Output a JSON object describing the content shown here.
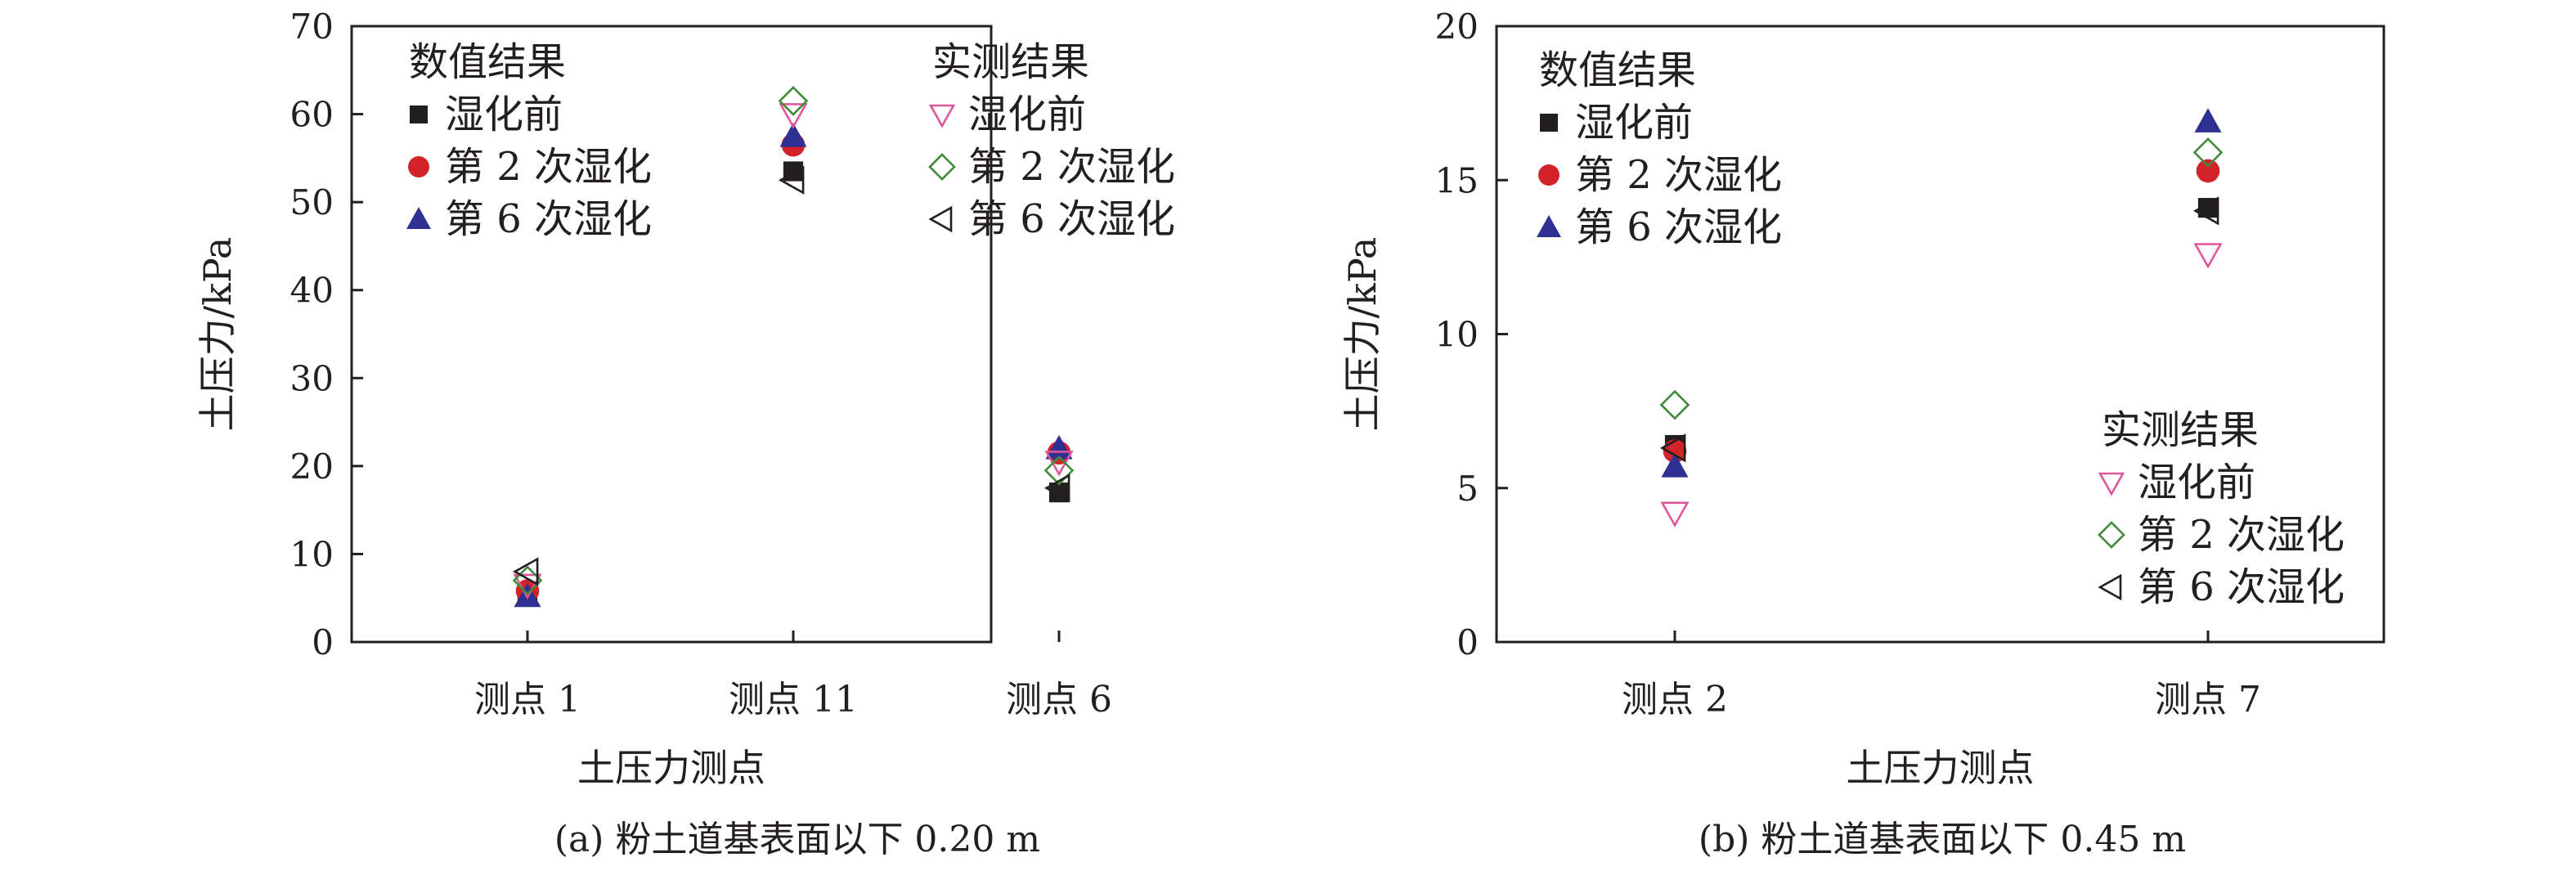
{
  "colors": {
    "axis": "#231f20",
    "num_pre": "#231f20",
    "num_2": "#d2232a",
    "num_6": "#2e3192",
    "mea_pre": "#e0569a",
    "mea_2": "#3f8b3a",
    "mea_6": "#231f20"
  },
  "chart_data": [
    {
      "type": "scatter",
      "caption": "(a) 粉土道基表面以下 0.20 m",
      "xlabel": "土压力测点",
      "ylabel": "土压力/kPa",
      "categories": [
        "测点 1",
        "测点 11",
        "测点 6"
      ],
      "ylim": [
        0,
        70
      ],
      "yticks": [
        0,
        10,
        20,
        30,
        40,
        50,
        60,
        70
      ],
      "grid": false,
      "legend_groups": [
        {
          "title": "数值结果",
          "position": "top-left",
          "series": [
            0,
            1,
            2
          ]
        },
        {
          "title": "实测结果",
          "position": "top-right",
          "series": [
            3,
            4,
            5
          ]
        }
      ],
      "series": [
        {
          "name": "湿化前",
          "group": "数值结果",
          "marker": "square",
          "color_key": "num_pre",
          "values": [
            5.5,
            53.5,
            17
          ]
        },
        {
          "name": "第 2 次湿化",
          "group": "数值结果",
          "marker": "circle",
          "color_key": "num_2",
          "values": [
            5.8,
            56.5,
            21.5
          ]
        },
        {
          "name": "第 6 次湿化",
          "group": "数值结果",
          "marker": "triangle-up",
          "color_key": "num_6",
          "values": [
            5.2,
            57.5,
            22
          ]
        },
        {
          "name": "湿化前",
          "group": "实测结果",
          "marker": "triangle-down-open",
          "color_key": "mea_pre",
          "values": [
            6.5,
            60,
            20.5
          ]
        },
        {
          "name": "第 2 次湿化",
          "group": "实测结果",
          "marker": "diamond-open",
          "color_key": "mea_2",
          "values": [
            7,
            61.5,
            19.5
          ]
        },
        {
          "name": "第 6 次湿化",
          "group": "实测结果",
          "marker": "triangle-left-open",
          "color_key": "mea_6",
          "values": [
            8,
            52.5,
            17.5
          ]
        }
      ]
    },
    {
      "type": "scatter",
      "caption": "(b) 粉土道基表面以下 0.45 m",
      "xlabel": "土压力测点",
      "ylabel": "土压力/kPa",
      "categories": [
        "测点 2",
        "测点 7"
      ],
      "ylim": [
        0,
        20
      ],
      "yticks": [
        0,
        5,
        10,
        15,
        20
      ],
      "grid": false,
      "legend_groups": [
        {
          "title": "数值结果",
          "position": "top-left",
          "series": [
            0,
            1,
            2
          ]
        },
        {
          "title": "实测结果",
          "position": "bottom-right",
          "series": [
            3,
            4,
            5
          ]
        }
      ],
      "series": [
        {
          "name": "湿化前",
          "group": "数值结果",
          "marker": "square",
          "color_key": "num_pre",
          "values": [
            6.4,
            14.1
          ]
        },
        {
          "name": "第 2 次湿化",
          "group": "数值结果",
          "marker": "circle",
          "color_key": "num_2",
          "values": [
            6.2,
            15.3
          ]
        },
        {
          "name": "第 6 次湿化",
          "group": "数值结果",
          "marker": "triangle-up",
          "color_key": "num_6",
          "values": [
            5.7,
            16.9
          ]
        },
        {
          "name": "湿化前",
          "group": "实测结果",
          "marker": "triangle-down-open",
          "color_key": "mea_pre",
          "values": [
            4.2,
            12.6
          ]
        },
        {
          "name": "第 2 次湿化",
          "group": "实测结果",
          "marker": "diamond-open",
          "color_key": "mea_2",
          "values": [
            7.7,
            15.9
          ]
        },
        {
          "name": "第 6 次湿化",
          "group": "实测结果",
          "marker": "triangle-left-open",
          "color_key": "mea_6",
          "values": [
            6.3,
            14
          ]
        }
      ]
    }
  ]
}
